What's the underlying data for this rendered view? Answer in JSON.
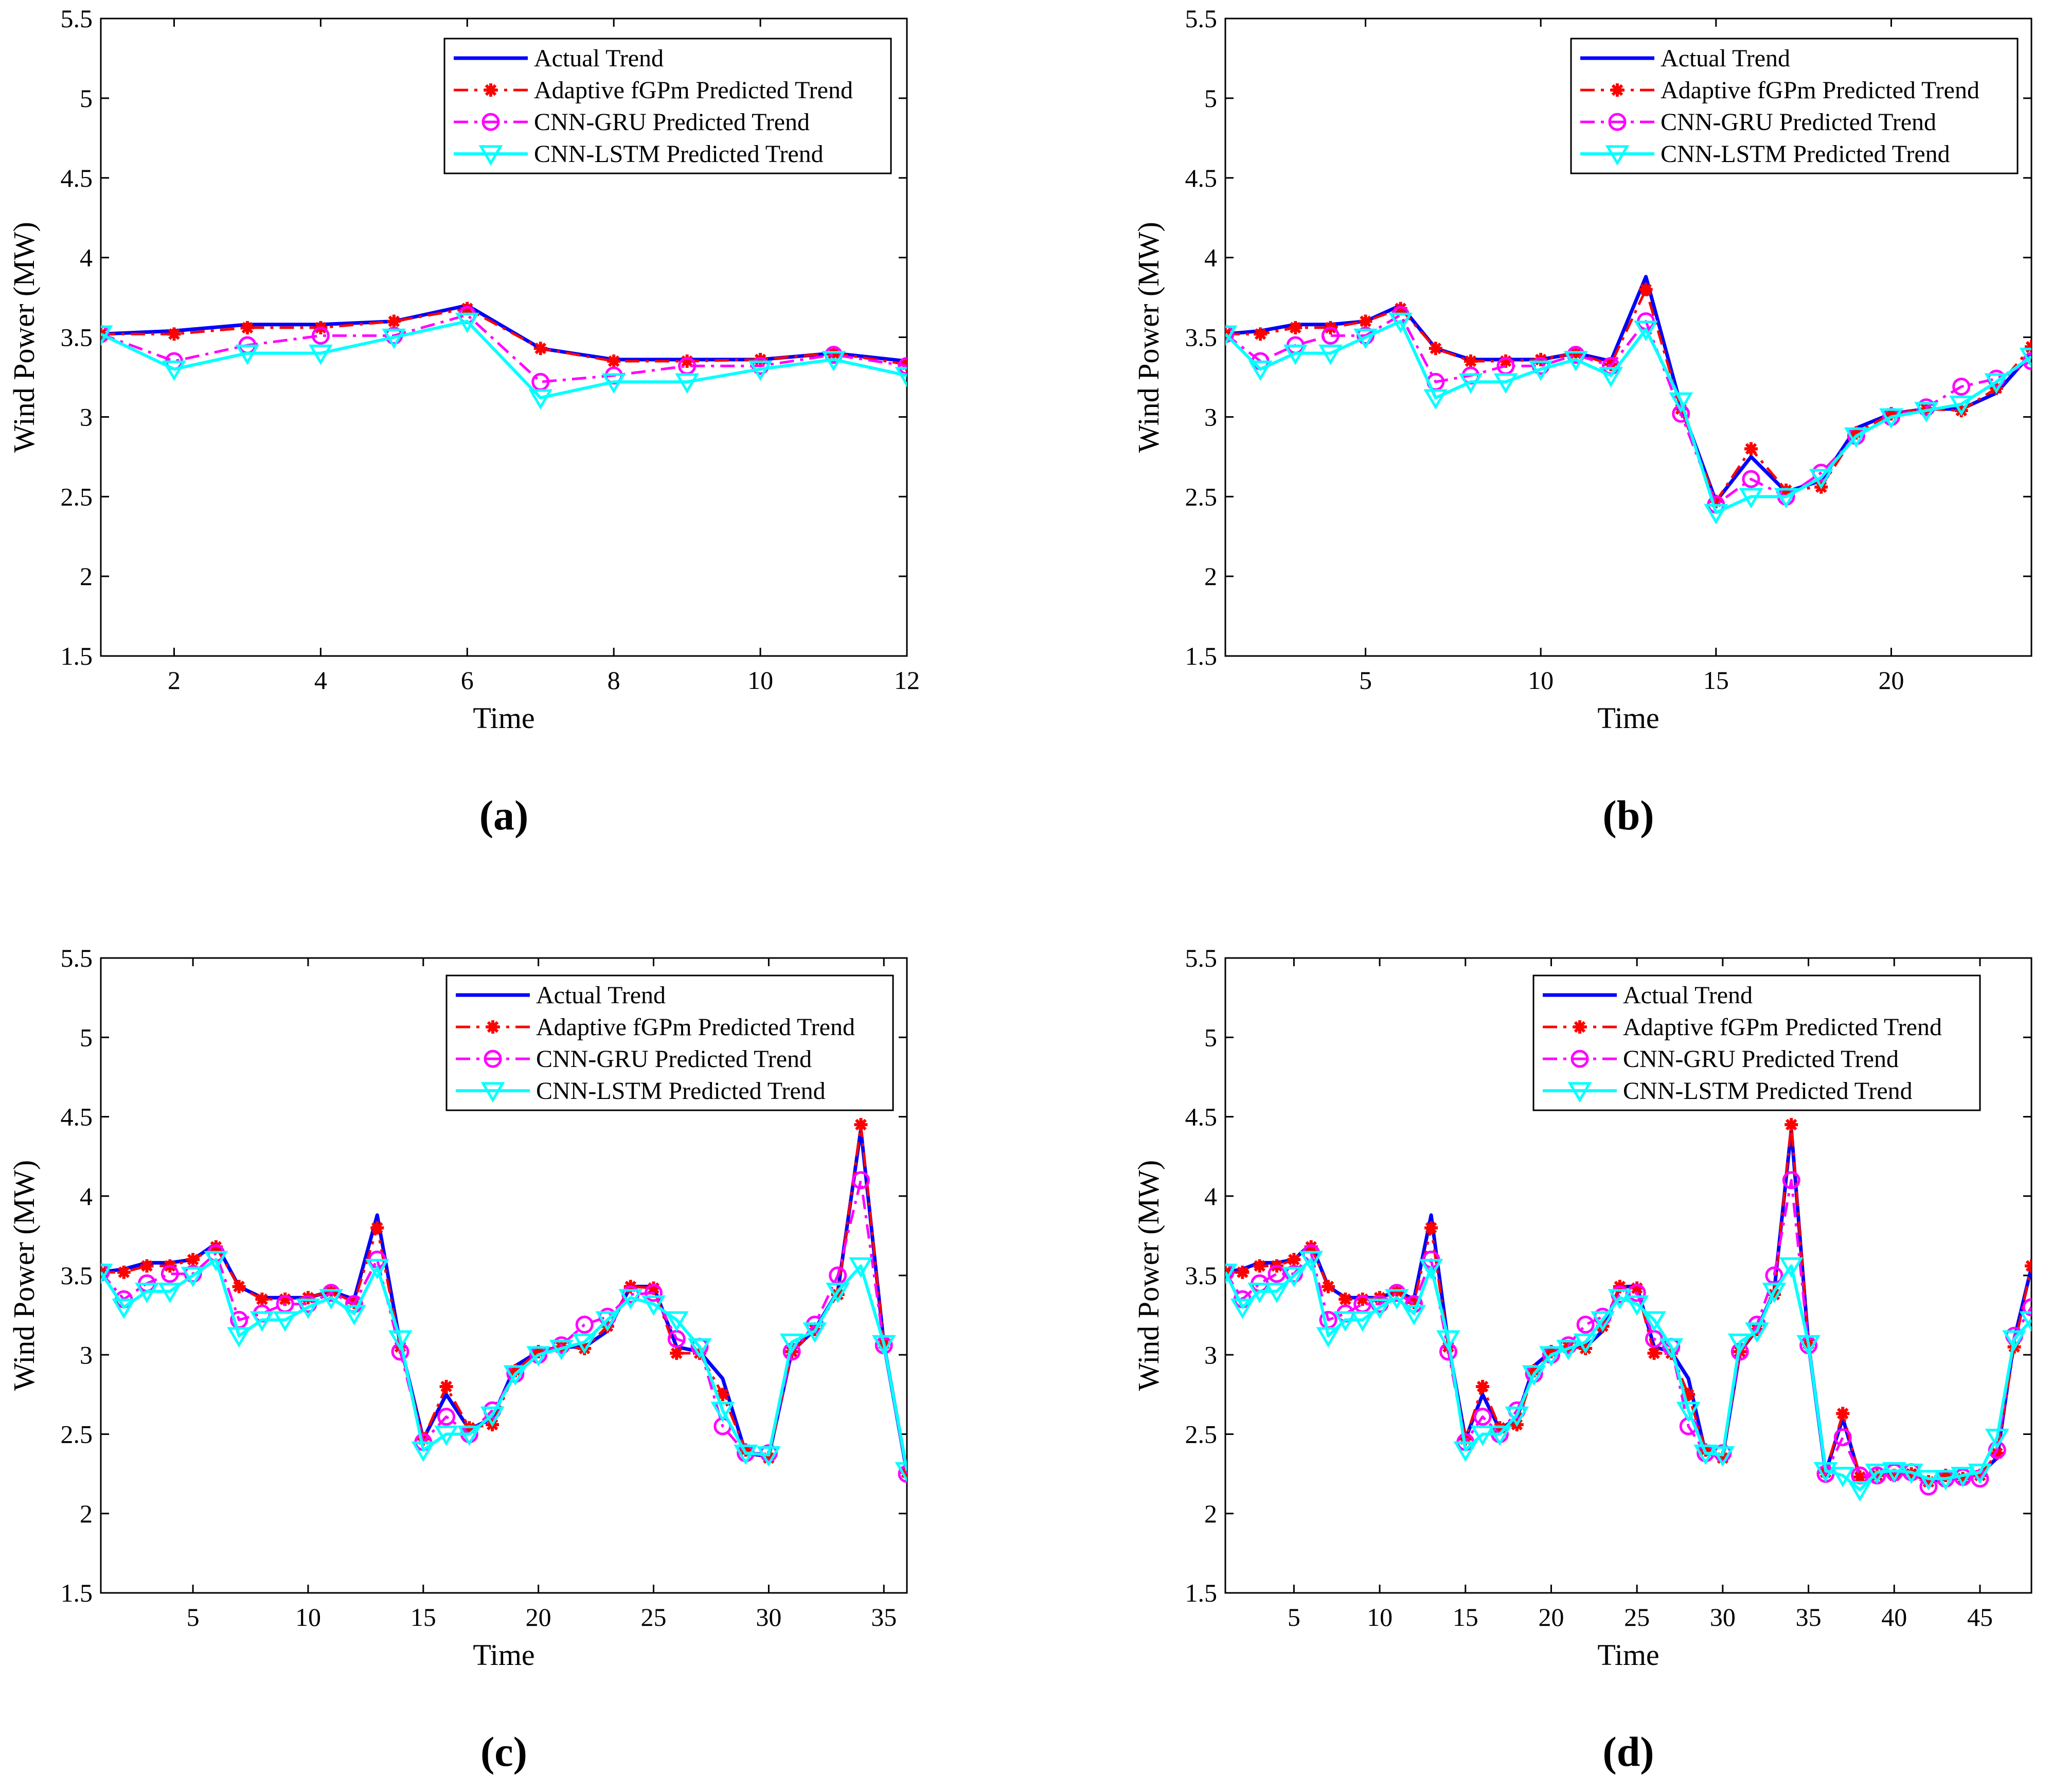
{
  "series_styles": [
    {
      "name": "Actual Trend",
      "color": "#0000ff",
      "marker": "none",
      "dash": "solid"
    },
    {
      "name": "Adaptive fGPm Predicted Trend",
      "color": "#ff0000",
      "marker": "asterisk",
      "dash": "dashdot"
    },
    {
      "name": "CNN-GRU Predicted Trend",
      "color": "#ff00ff",
      "marker": "circle",
      "dash": "dashdot"
    },
    {
      "name": "CNN-LSTM Predicted Trend",
      "color": "#00ffff",
      "marker": "triangle-down",
      "dash": "solid"
    }
  ],
  "chart_data": [
    {
      "type": "line",
      "panel_label": "(a)",
      "title": "",
      "xlabel": "Time",
      "ylabel": "Wind Power (MW)",
      "xlim": [
        1,
        12
      ],
      "ylim": [
        1.5,
        5.5
      ],
      "xticks": [
        2,
        4,
        6,
        8,
        10,
        12
      ],
      "yticks": [
        1.5,
        2,
        2.5,
        3,
        3.5,
        4,
        4.5,
        5,
        5.5
      ],
      "legend_position": "top-right",
      "x": [
        1,
        2,
        3,
        4,
        5,
        6,
        7,
        8,
        9,
        10,
        11,
        12
      ],
      "series": [
        {
          "name": "Actual Trend",
          "values": [
            3.52,
            3.54,
            3.58,
            3.58,
            3.6,
            3.7,
            3.43,
            3.36,
            3.36,
            3.36,
            3.4,
            3.35
          ]
        },
        {
          "name": "Adaptive fGPm Predicted Trend",
          "values": [
            3.52,
            3.52,
            3.56,
            3.56,
            3.6,
            3.68,
            3.43,
            3.35,
            3.35,
            3.36,
            3.4,
            3.33
          ]
        },
        {
          "name": "CNN-GRU Predicted Trend",
          "values": [
            3.52,
            3.35,
            3.45,
            3.51,
            3.51,
            3.64,
            3.22,
            3.26,
            3.32,
            3.32,
            3.39,
            3.32
          ]
        },
        {
          "name": "CNN-LSTM Predicted Trend",
          "values": [
            3.52,
            3.3,
            3.4,
            3.4,
            3.5,
            3.6,
            3.12,
            3.22,
            3.22,
            3.3,
            3.36,
            3.26
          ]
        }
      ]
    },
    {
      "type": "line",
      "panel_label": "(b)",
      "title": "",
      "xlabel": "Time",
      "ylabel": "Wind Power (MW)",
      "xlim": [
        1,
        24
      ],
      "ylim": [
        1.5,
        5.5
      ],
      "xticks": [
        5,
        10,
        15,
        20
      ],
      "yticks": [
        1.5,
        2,
        2.5,
        3,
        3.5,
        4,
        4.5,
        5,
        5.5
      ],
      "legend_position": "top-right",
      "x": [
        1,
        2,
        3,
        4,
        5,
        6,
        7,
        8,
        9,
        10,
        11,
        12,
        13,
        14,
        15,
        16,
        17,
        18,
        19,
        20,
        21,
        22,
        23,
        24
      ],
      "series": [
        {
          "name": "Actual Trend",
          "values": [
            3.52,
            3.54,
            3.58,
            3.58,
            3.6,
            3.7,
            3.43,
            3.36,
            3.36,
            3.36,
            3.4,
            3.35,
            3.88,
            3.07,
            2.47,
            2.75,
            2.53,
            2.6,
            2.93,
            3.02,
            3.05,
            3.05,
            3.15,
            3.4
          ]
        },
        {
          "name": "Adaptive fGPm Predicted Trend",
          "values": [
            3.52,
            3.52,
            3.56,
            3.56,
            3.6,
            3.68,
            3.43,
            3.35,
            3.35,
            3.36,
            3.4,
            3.33,
            3.8,
            3.05,
            2.47,
            2.8,
            2.54,
            2.56,
            2.9,
            3.02,
            3.05,
            3.04,
            3.18,
            3.44
          ]
        },
        {
          "name": "CNN-GRU Predicted Trend",
          "values": [
            3.52,
            3.35,
            3.45,
            3.51,
            3.51,
            3.64,
            3.22,
            3.26,
            3.32,
            3.32,
            3.39,
            3.32,
            3.6,
            3.02,
            2.45,
            2.61,
            2.5,
            2.65,
            2.88,
            3.0,
            3.06,
            3.19,
            3.24,
            3.35
          ]
        },
        {
          "name": "CNN-LSTM Predicted Trend",
          "values": [
            3.52,
            3.3,
            3.4,
            3.4,
            3.5,
            3.6,
            3.12,
            3.22,
            3.22,
            3.3,
            3.36,
            3.26,
            3.55,
            3.1,
            2.4,
            2.5,
            2.5,
            2.62,
            2.88,
            3.0,
            3.04,
            3.08,
            3.22,
            3.38
          ]
        }
      ]
    },
    {
      "type": "line",
      "panel_label": "(c)",
      "title": "",
      "xlabel": "Time",
      "ylabel": "Wind Power (MW)",
      "xlim": [
        1,
        36
      ],
      "ylim": [
        1.5,
        5.5
      ],
      "xticks": [
        5,
        10,
        15,
        20,
        25,
        30,
        35
      ],
      "yticks": [
        1.5,
        2,
        2.5,
        3,
        3.5,
        4,
        4.5,
        5,
        5.5
      ],
      "legend_position": "top-right",
      "x": [
        1,
        2,
        3,
        4,
        5,
        6,
        7,
        8,
        9,
        10,
        11,
        12,
        13,
        14,
        15,
        16,
        17,
        18,
        19,
        20,
        21,
        22,
        23,
        24,
        25,
        26,
        27,
        28,
        29,
        30,
        31,
        32,
        33,
        34,
        35,
        36
      ],
      "series": [
        {
          "name": "Actual Trend",
          "values": [
            3.52,
            3.54,
            3.58,
            3.58,
            3.6,
            3.7,
            3.43,
            3.36,
            3.36,
            3.36,
            3.4,
            3.35,
            3.88,
            3.07,
            2.47,
            2.75,
            2.53,
            2.6,
            2.93,
            3.02,
            3.05,
            3.05,
            3.15,
            3.43,
            3.43,
            3.05,
            3.02,
            2.85,
            2.38,
            2.36,
            3.02,
            3.16,
            3.4,
            4.42,
            3.07,
            2.26
          ]
        },
        {
          "name": "Adaptive fGPm Predicted Trend",
          "values": [
            3.52,
            3.52,
            3.56,
            3.56,
            3.6,
            3.68,
            3.43,
            3.35,
            3.35,
            3.36,
            3.4,
            3.33,
            3.8,
            3.05,
            2.47,
            2.8,
            2.54,
            2.56,
            2.9,
            3.02,
            3.05,
            3.04,
            3.18,
            3.43,
            3.42,
            3.01,
            3.01,
            2.75,
            2.4,
            2.35,
            3.02,
            3.16,
            3.38,
            4.45,
            3.07,
            2.26
          ]
        },
        {
          "name": "CNN-GRU Predicted Trend",
          "values": [
            3.52,
            3.35,
            3.45,
            3.51,
            3.51,
            3.64,
            3.22,
            3.26,
            3.32,
            3.32,
            3.39,
            3.32,
            3.6,
            3.02,
            2.45,
            2.61,
            2.5,
            2.65,
            2.88,
            3.0,
            3.06,
            3.19,
            3.24,
            3.38,
            3.39,
            3.1,
            3.05,
            2.55,
            2.38,
            2.38,
            3.02,
            3.19,
            3.5,
            4.1,
            3.06,
            2.25
          ]
        },
        {
          "name": "CNN-LSTM Predicted Trend",
          "values": [
            3.52,
            3.3,
            3.4,
            3.4,
            3.5,
            3.6,
            3.12,
            3.22,
            3.22,
            3.3,
            3.36,
            3.26,
            3.55,
            3.1,
            2.4,
            2.5,
            2.5,
            2.62,
            2.88,
            3.0,
            3.04,
            3.08,
            3.22,
            3.36,
            3.32,
            3.22,
            3.05,
            2.65,
            2.38,
            2.37,
            3.08,
            3.15,
            3.4,
            3.56,
            3.07,
            2.27
          ]
        }
      ]
    },
    {
      "type": "line",
      "panel_label": "(d)",
      "title": "",
      "xlabel": "Time",
      "ylabel": "Wind Power (MW)",
      "xlim": [
        1,
        48
      ],
      "ylim": [
        1.5,
        5.5
      ],
      "xticks": [
        5,
        10,
        15,
        20,
        25,
        30,
        35,
        40,
        45
      ],
      "yticks": [
        1.5,
        2,
        2.5,
        3,
        3.5,
        4,
        4.5,
        5,
        5.5
      ],
      "legend_position": "top-right",
      "x": [
        1,
        2,
        3,
        4,
        5,
        6,
        7,
        8,
        9,
        10,
        11,
        12,
        13,
        14,
        15,
        16,
        17,
        18,
        19,
        20,
        21,
        22,
        23,
        24,
        25,
        26,
        27,
        28,
        29,
        30,
        31,
        32,
        33,
        34,
        35,
        36,
        37,
        38,
        39,
        40,
        41,
        42,
        43,
        44,
        45,
        46,
        47,
        48
      ],
      "series": [
        {
          "name": "Actual Trend",
          "values": [
            3.52,
            3.54,
            3.58,
            3.58,
            3.6,
            3.7,
            3.43,
            3.36,
            3.36,
            3.36,
            3.4,
            3.35,
            3.88,
            3.07,
            2.47,
            2.75,
            2.53,
            2.6,
            2.93,
            3.02,
            3.05,
            3.05,
            3.15,
            3.43,
            3.43,
            3.05,
            3.02,
            2.85,
            2.38,
            2.36,
            3.02,
            3.16,
            3.4,
            4.42,
            3.07,
            2.26,
            2.6,
            2.23,
            2.25,
            2.25,
            2.26,
            2.2,
            2.22,
            2.24,
            2.25,
            2.35,
            3.1,
            3.55
          ]
        },
        {
          "name": "Adaptive fGPm Predicted Trend",
          "values": [
            3.52,
            3.52,
            3.56,
            3.56,
            3.6,
            3.68,
            3.43,
            3.35,
            3.35,
            3.36,
            3.4,
            3.33,
            3.8,
            3.05,
            2.47,
            2.8,
            2.54,
            2.56,
            2.9,
            3.02,
            3.05,
            3.04,
            3.18,
            3.43,
            3.42,
            3.01,
            3.01,
            2.75,
            2.4,
            2.35,
            3.02,
            3.16,
            3.38,
            4.45,
            3.07,
            2.26,
            2.63,
            2.23,
            2.24,
            2.24,
            2.25,
            2.2,
            2.24,
            2.22,
            2.24,
            2.38,
            3.05,
            3.56
          ]
        },
        {
          "name": "CNN-GRU Predicted Trend",
          "values": [
            3.52,
            3.35,
            3.45,
            3.51,
            3.51,
            3.64,
            3.22,
            3.26,
            3.32,
            3.32,
            3.39,
            3.32,
            3.6,
            3.02,
            2.45,
            2.61,
            2.5,
            2.65,
            2.88,
            3.0,
            3.06,
            3.19,
            3.24,
            3.38,
            3.39,
            3.1,
            3.05,
            2.55,
            2.38,
            2.38,
            3.02,
            3.19,
            3.5,
            4.1,
            3.06,
            2.25,
            2.48,
            2.24,
            2.24,
            2.26,
            2.26,
            2.17,
            2.22,
            2.23,
            2.22,
            2.4,
            3.12,
            3.3
          ]
        },
        {
          "name": "CNN-LSTM Predicted Trend",
          "values": [
            3.52,
            3.3,
            3.4,
            3.4,
            3.5,
            3.6,
            3.12,
            3.22,
            3.22,
            3.3,
            3.36,
            3.26,
            3.55,
            3.1,
            2.4,
            2.5,
            2.5,
            2.62,
            2.88,
            3.0,
            3.04,
            3.08,
            3.22,
            3.36,
            3.32,
            3.22,
            3.05,
            2.65,
            2.38,
            2.37,
            3.08,
            3.15,
            3.4,
            3.56,
            3.07,
            2.27,
            2.24,
            2.15,
            2.26,
            2.27,
            2.26,
            2.22,
            2.22,
            2.24,
            2.26,
            2.48,
            3.1,
            3.22
          ]
        }
      ]
    }
  ]
}
